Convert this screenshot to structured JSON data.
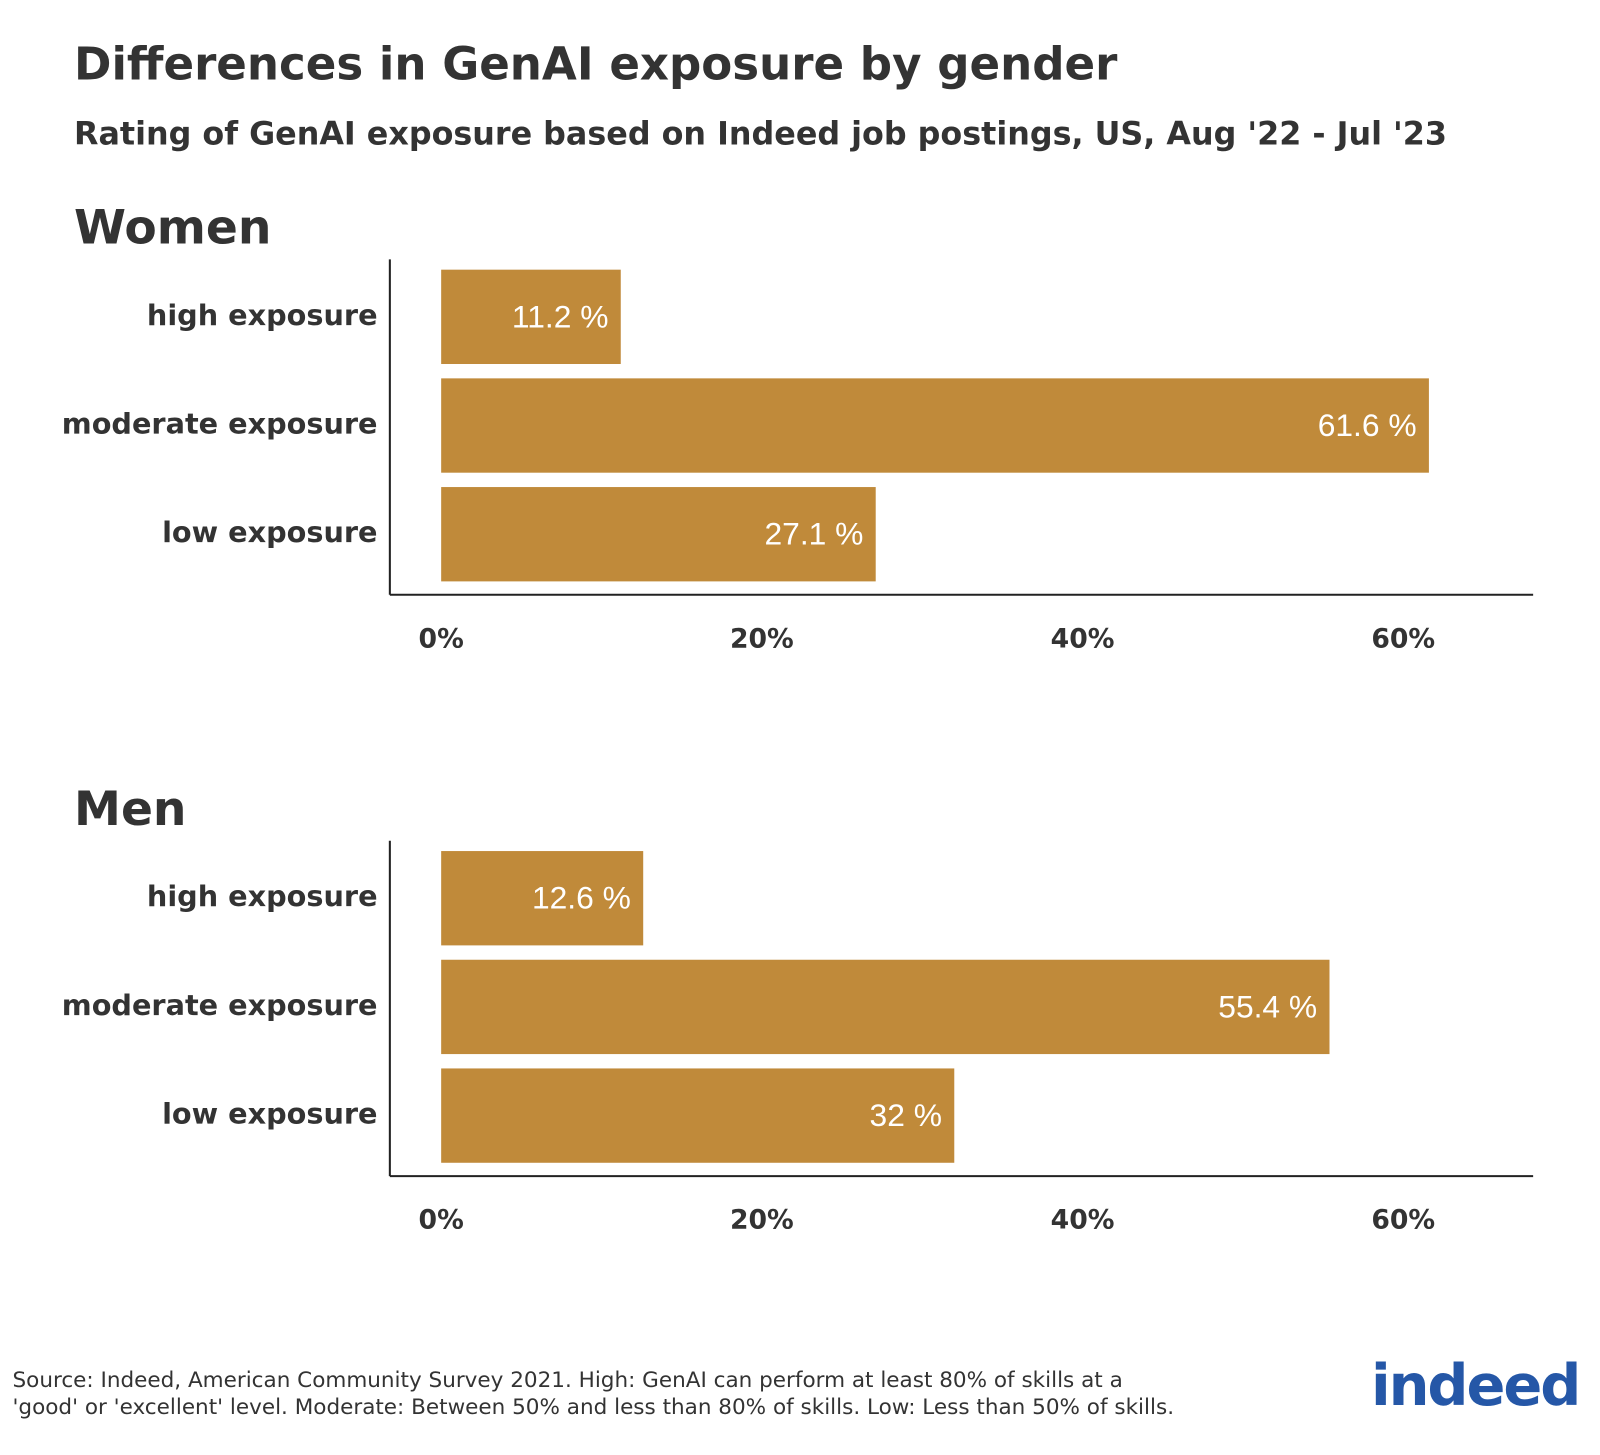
{
  "title": "Differences in GenAI exposure by gender",
  "subtitle": "Rating of GenAI exposure based on Indeed job postings, US, Aug '22 - Jul '23",
  "source": [
    "Source: Indeed, American Community Survey 2021. High: GenAI can perform at least 80% of skills at a",
    "'good' or 'excellent' level. Moderate: Between 50% and less than 80% of skills. Low: Less than 50% of skills."
  ],
  "logo": "indeed",
  "chart_data": [
    {
      "type": "bar",
      "orientation": "horizontal",
      "title": "Women",
      "color": "#c08a3a",
      "categories": [
        "high exposure",
        "moderate exposure",
        "low exposure"
      ],
      "values": [
        11.2,
        61.6,
        27.1
      ],
      "value_labels": [
        "11.2 %",
        "61.6 %",
        "27.1 %"
      ],
      "xlim": [
        -3.2,
        68.1
      ],
      "xticks": [
        {
          "value": 0,
          "label": "0%"
        },
        {
          "value": 20,
          "label": "20%"
        },
        {
          "value": 40,
          "label": "40%"
        },
        {
          "value": 60,
          "label": "60%"
        }
      ]
    },
    {
      "type": "bar",
      "orientation": "horizontal",
      "title": "Men",
      "color": "#c08a3a",
      "categories": [
        "high exposure",
        "moderate exposure",
        "low exposure"
      ],
      "values": [
        12.6,
        55.4,
        32
      ],
      "value_labels": [
        "12.6 %",
        "55.4 %",
        "32 %"
      ],
      "xlim": [
        -3.2,
        68.1
      ],
      "xticks": [
        {
          "value": 0,
          "label": "0%"
        },
        {
          "value": 20,
          "label": "20%"
        },
        {
          "value": 40,
          "label": "40%"
        },
        {
          "value": 60,
          "label": "60%"
        }
      ]
    }
  ]
}
